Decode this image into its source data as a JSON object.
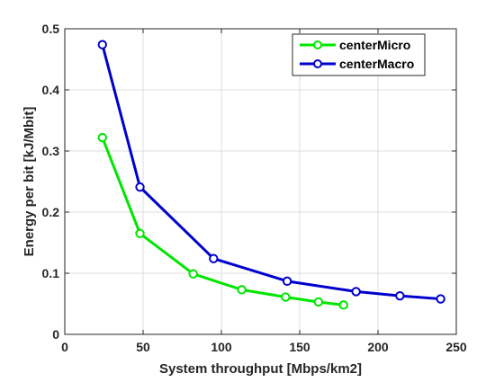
{
  "chart_data": {
    "type": "line",
    "title": "",
    "xlabel": "System throughput [Mbps/km2]",
    "ylabel": "Energy per bit [kJ/Mbit]",
    "xlim": [
      0,
      250
    ],
    "ylim": [
      0,
      0.5
    ],
    "xticks": [
      0,
      50,
      100,
      150,
      200,
      250
    ],
    "yticks": [
      0,
      0.1,
      0.2,
      0.3,
      0.4,
      0.5
    ],
    "xtick_labels": [
      "0",
      "50",
      "100",
      "150",
      "200",
      "250"
    ],
    "ytick_labels": [
      "0",
      "0.1",
      "0.2",
      "0.3",
      "0.4",
      "0.5"
    ],
    "grid": true,
    "legend_position": "top-right",
    "series": [
      {
        "name": "centerMicro",
        "color": "#00e600",
        "marker": "circle",
        "x": [
          24,
          48,
          82,
          113,
          141,
          162,
          178
        ],
        "y": [
          0.322,
          0.165,
          0.099,
          0.073,
          0.061,
          0.053,
          0.048
        ]
      },
      {
        "name": "centerMacro",
        "color": "#0000cc",
        "marker": "circle",
        "x": [
          24,
          48,
          95,
          142,
          186,
          214,
          240
        ],
        "y": [
          0.474,
          0.241,
          0.124,
          0.087,
          0.07,
          0.063,
          0.058
        ]
      }
    ]
  }
}
